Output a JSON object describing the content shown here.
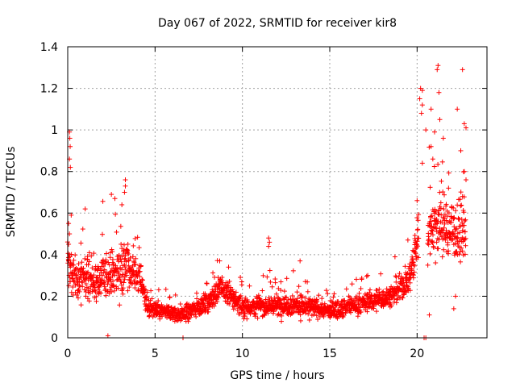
{
  "chart_data": {
    "type": "scatter",
    "title": "Day 067 of 2022, SRMTID for receiver kir8",
    "xlabel": "GPS time / hours",
    "ylabel": "SRMTID / TECUs",
    "xlim": [
      0,
      24
    ],
    "ylim": [
      0,
      1.4
    ],
    "xticks": [
      0,
      5,
      10,
      15,
      20
    ],
    "xtick_labels": [
      "0",
      "5",
      "10",
      "15",
      "20"
    ],
    "yticks": [
      0,
      0.2,
      0.4,
      0.6,
      0.8,
      1.0,
      1.2,
      1.4
    ],
    "ytick_labels": [
      "0",
      "0.2",
      "0.4",
      "0.6",
      "0.8",
      "1",
      "1.2",
      "1.4"
    ],
    "grid": true,
    "marker": "+",
    "marker_color": "#ff0000",
    "series": [
      {
        "name": "SRMTID",
        "profile": [
          {
            "x": 0.0,
            "center": 0.35,
            "spread": 0.14
          },
          {
            "x": 0.5,
            "center": 0.28,
            "spread": 0.12
          },
          {
            "x": 1.5,
            "center": 0.27,
            "spread": 0.12
          },
          {
            "x": 2.5,
            "center": 0.3,
            "spread": 0.14
          },
          {
            "x": 3.3,
            "center": 0.35,
            "spread": 0.16
          },
          {
            "x": 4.2,
            "center": 0.28,
            "spread": 0.1
          },
          {
            "x": 4.6,
            "center": 0.14,
            "spread": 0.05
          },
          {
            "x": 6.5,
            "center": 0.11,
            "spread": 0.05
          },
          {
            "x": 8.0,
            "center": 0.17,
            "spread": 0.06
          },
          {
            "x": 8.8,
            "center": 0.24,
            "spread": 0.08
          },
          {
            "x": 10.0,
            "center": 0.15,
            "spread": 0.06
          },
          {
            "x": 13.0,
            "center": 0.16,
            "spread": 0.07
          },
          {
            "x": 15.0,
            "center": 0.13,
            "spread": 0.05
          },
          {
            "x": 17.0,
            "center": 0.17,
            "spread": 0.06
          },
          {
            "x": 18.5,
            "center": 0.2,
            "spread": 0.07
          },
          {
            "x": 19.5,
            "center": 0.27,
            "spread": 0.09
          },
          {
            "x": 20.0,
            "center": 0.45,
            "spread": 0.16
          },
          {
            "x": 21.0,
            "center": 0.55,
            "spread": 0.2
          },
          {
            "x": 22.8,
            "center": 0.5,
            "spread": 0.18
          }
        ],
        "gaps": [
          [
            20.1,
            20.6
          ]
        ],
        "highlights": [
          {
            "x": 0.1,
            "y": 0.99
          },
          {
            "x": 0.12,
            "y": 0.96
          },
          {
            "x": 0.14,
            "y": 0.92
          },
          {
            "x": 0.1,
            "y": 0.86
          },
          {
            "x": 0.15,
            "y": 0.82
          },
          {
            "x": 0.2,
            "y": 0.59
          },
          {
            "x": 0.05,
            "y": 0.55
          },
          {
            "x": 0.1,
            "y": 0.5
          },
          {
            "x": 0.05,
            "y": 0.45
          },
          {
            "x": 1.0,
            "y": 0.62
          },
          {
            "x": 2.5,
            "y": 0.69
          },
          {
            "x": 2.7,
            "y": 0.67
          },
          {
            "x": 3.3,
            "y": 0.76
          },
          {
            "x": 3.3,
            "y": 0.73
          },
          {
            "x": 3.25,
            "y": 0.7
          },
          {
            "x": 3.1,
            "y": 0.64
          },
          {
            "x": 2.3,
            "y": 0.01
          },
          {
            "x": 11.5,
            "y": 0.48
          },
          {
            "x": 11.55,
            "y": 0.46
          },
          {
            "x": 11.5,
            "y": 0.44
          },
          {
            "x": 13.3,
            "y": 0.37
          },
          {
            "x": 8.7,
            "y": 0.37
          },
          {
            "x": 6.6,
            "y": 0.0
          },
          {
            "x": 20.4,
            "y": 0.0
          },
          {
            "x": 20.5,
            "y": 0.0
          },
          {
            "x": 20.2,
            "y": 1.2
          },
          {
            "x": 20.3,
            "y": 1.19
          },
          {
            "x": 20.15,
            "y": 1.15
          },
          {
            "x": 20.3,
            "y": 1.12
          },
          {
            "x": 20.25,
            "y": 1.08
          },
          {
            "x": 20.8,
            "y": 1.1
          },
          {
            "x": 21.2,
            "y": 1.31
          },
          {
            "x": 21.15,
            "y": 1.29
          },
          {
            "x": 21.25,
            "y": 1.18
          },
          {
            "x": 22.6,
            "y": 1.29
          },
          {
            "x": 21.3,
            "y": 1.05
          },
          {
            "x": 22.3,
            "y": 1.1
          },
          {
            "x": 22.8,
            "y": 1.01
          },
          {
            "x": 22.7,
            "y": 1.03
          },
          {
            "x": 20.5,
            "y": 1.0
          },
          {
            "x": 21.0,
            "y": 0.99
          },
          {
            "x": 21.5,
            "y": 0.96
          },
          {
            "x": 20.8,
            "y": 0.92
          },
          {
            "x": 22.5,
            "y": 0.9
          },
          {
            "x": 20.3,
            "y": 0.84
          },
          {
            "x": 20.9,
            "y": 0.86
          },
          {
            "x": 22.7,
            "y": 0.8
          },
          {
            "x": 22.8,
            "y": 0.76
          },
          {
            "x": 22.6,
            "y": 0.68
          },
          {
            "x": 20.0,
            "y": 0.66
          },
          {
            "x": 21.8,
            "y": 0.72
          },
          {
            "x": 20.7,
            "y": 0.11
          },
          {
            "x": 22.1,
            "y": 0.14
          },
          {
            "x": 22.2,
            "y": 0.2
          }
        ]
      }
    ]
  }
}
